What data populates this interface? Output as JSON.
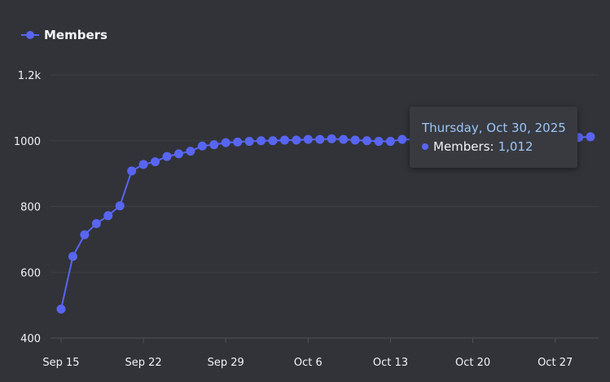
{
  "legend": {
    "label": "Members"
  },
  "colors": {
    "background": "#313338",
    "series": "#5865f2",
    "grid": "#3d3f45",
    "axis_text": "#f2f3f5",
    "tooltip_date": "#9ec5f6"
  },
  "tooltip": {
    "date": "Thursday, Oct 30, 2025",
    "label": "Members:",
    "value": "1,012"
  },
  "chart_data": {
    "type": "line",
    "series": [
      {
        "name": "Members",
        "x": [
          "Sep 15",
          "Sep 16",
          "Sep 17",
          "Sep 18",
          "Sep 19",
          "Sep 20",
          "Sep 21",
          "Sep 22",
          "Sep 23",
          "Sep 24",
          "Sep 25",
          "Sep 26",
          "Sep 27",
          "Sep 28",
          "Sep 29",
          "Sep 30",
          "Oct 1",
          "Oct 2",
          "Oct 3",
          "Oct 4",
          "Oct 5",
          "Oct 6",
          "Oct 7",
          "Oct 8",
          "Oct 9",
          "Oct 10",
          "Oct 11",
          "Oct 12",
          "Oct 13",
          "Oct 14",
          "Oct 15",
          "Oct 16",
          "Oct 17",
          "Oct 18",
          "Oct 19",
          "Oct 20",
          "Oct 21",
          "Oct 22",
          "Oct 23",
          "Oct 24",
          "Oct 25",
          "Oct 26",
          "Oct 27",
          "Oct 28",
          "Oct 29",
          "Oct 30"
        ],
        "values": [
          488,
          648,
          714,
          748,
          772,
          802,
          908,
          928,
          936,
          952,
          960,
          968,
          984,
          988,
          994,
          996,
          998,
          1000,
          1000,
          1002,
          1002,
          1004,
          1004,
          1006,
          1004,
          1002,
          1000,
          998,
          998,
          1004,
          1004,
          1004,
          1006,
          1004,
          1006,
          1004,
          1006,
          1004,
          1006,
          1006,
          1008,
          1008,
          1010,
          1010,
          1010,
          1012
        ]
      }
    ],
    "x_ticks": [
      "Sep 15",
      "Sep 22",
      "Sep 29",
      "Oct 6",
      "Oct 13",
      "Oct 20",
      "Oct 27"
    ],
    "y_ticks": [
      {
        "value": 400,
        "label": "400"
      },
      {
        "value": 600,
        "label": "600"
      },
      {
        "value": 800,
        "label": "800"
      },
      {
        "value": 1000,
        "label": "1000"
      },
      {
        "value": 1200,
        "label": "1.2k"
      }
    ],
    "ylim": [
      400,
      1200
    ],
    "grid": true,
    "legend_position": "top-left",
    "title": "",
    "xlabel": "",
    "ylabel": ""
  }
}
